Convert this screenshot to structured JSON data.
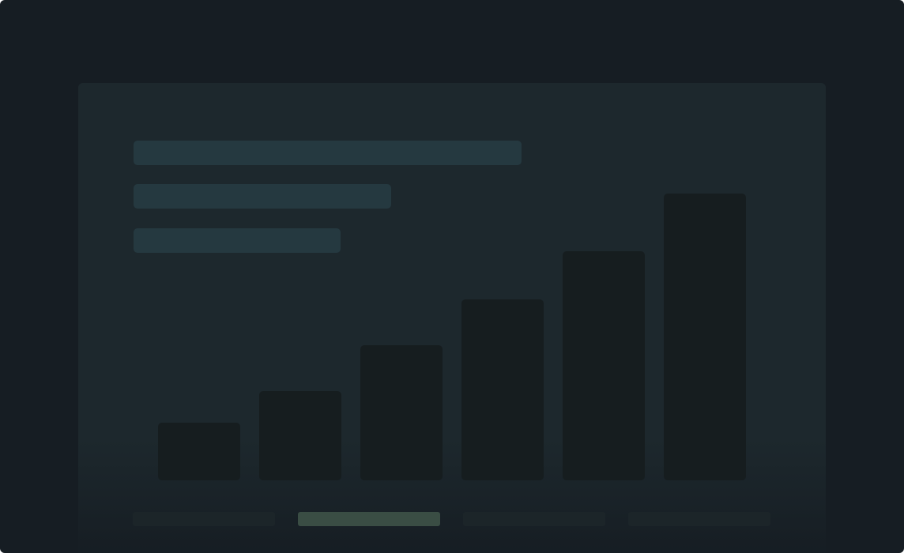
{
  "skeleton": {
    "text_lines": 3,
    "bar_levels": [
      0.2,
      0.31,
      0.47,
      0.63,
      0.8,
      1.0
    ],
    "indicators": [
      {
        "active": false
      },
      {
        "active": true
      },
      {
        "active": false
      },
      {
        "active": false
      }
    ]
  },
  "colors": {
    "background": "#161d23",
    "card": "#1d282d",
    "placeholder_line": "#253940",
    "placeholder_bar": "#161d1f",
    "indicator": "#1c2529",
    "indicator_active": "#3a4d44"
  }
}
